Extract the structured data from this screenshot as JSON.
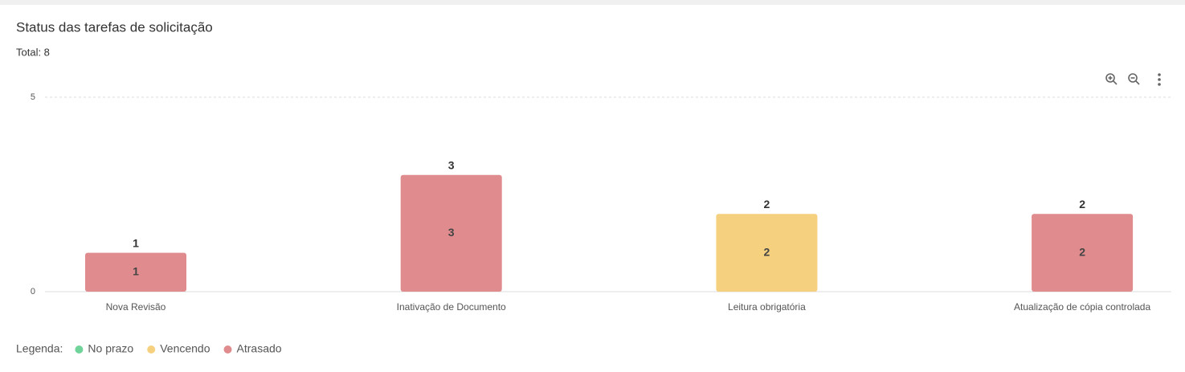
{
  "chart_data": {
    "type": "stacked_bar",
    "title": "Status das tarefas de solicitação",
    "subtitle": "Total: 8",
    "categories": [
      "Nova Revisão",
      "Inativação de Documento",
      "Leitura obrigatória",
      "Atualização de cópia controlada"
    ],
    "series": [
      {
        "name": "No prazo",
        "color": "#6fd39a",
        "values": [
          0,
          0,
          0,
          0
        ]
      },
      {
        "name": "Vencendo",
        "color": "#f5d17f",
        "values": [
          0,
          0,
          2,
          0
        ]
      },
      {
        "name": "Atrasado",
        "color": "#e08b8d",
        "values": [
          1,
          3,
          0,
          2
        ]
      }
    ],
    "totals": [
      1,
      3,
      2,
      2
    ],
    "legend_title": "Legenda:",
    "ylim": [
      0,
      5
    ],
    "yticks": [
      0,
      5
    ],
    "grid": true
  }
}
